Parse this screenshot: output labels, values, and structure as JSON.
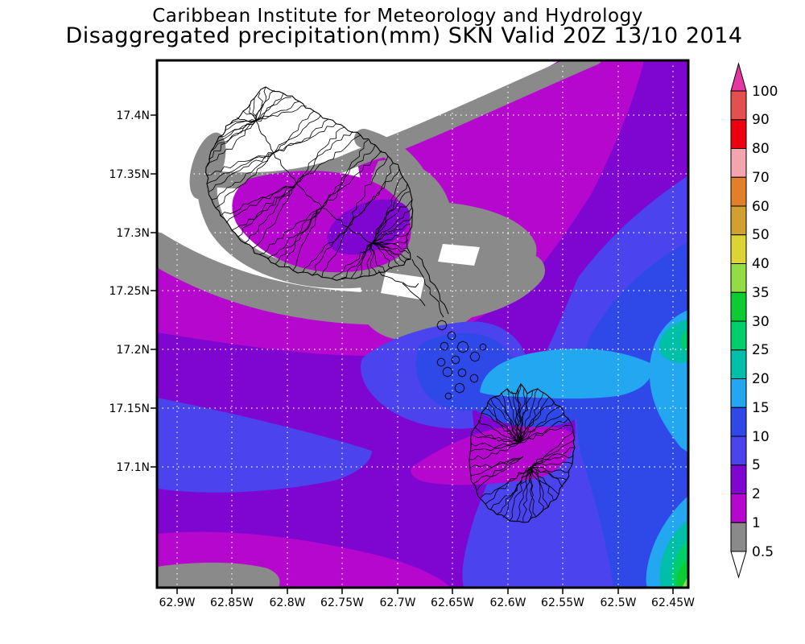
{
  "titles": {
    "line1": "Caribbean Institute for Meteorology and Hydrology",
    "line2": "Disaggregated precipitation(mm) SKN Valid 20Z 13/10 2014"
  },
  "axes": {
    "lat": [
      "17.4N",
      "17.35N",
      "17.3N",
      "17.25N",
      "17.2N",
      "17.15N",
      "17.1N"
    ],
    "lon": [
      "62.9W",
      "62.85W",
      "62.8W",
      "62.75W",
      "62.7W",
      "62.65W",
      "62.6W",
      "62.55W",
      "62.5W",
      "62.45W"
    ]
  },
  "colorbar": {
    "levels": [
      "100",
      "90",
      "80",
      "70",
      "60",
      "50",
      "40",
      "35",
      "30",
      "25",
      "20",
      "15",
      "10",
      "5",
      "2",
      "1",
      "0.5"
    ],
    "segment_colors_top_to_bottom": [
      "#E4504E",
      "#EE0011",
      "#F4A4AC",
      "#E2802A",
      "#D2A02E",
      "#DCD435",
      "#94DC46",
      "#0DCC33",
      "#00CE6B",
      "#00BFA8",
      "#22A7F0",
      "#2F49E8",
      "#4B43EE",
      "#7F05D0",
      "#B607CF",
      "#8A8A8A"
    ],
    "over_color": "#E636A4",
    "under_color": "#FFFFFF"
  },
  "chart_data": {
    "type": "heatmap",
    "title": "Disaggregated precipitation(mm) SKN Valid 20Z 13/10 2014",
    "institution": "Caribbean Institute for Meteorology and Hydrology",
    "units": "mm",
    "region_code": "SKN",
    "valid_time": "20Z 13/10 2014",
    "lon_ticks_deg_west": [
      62.9,
      62.85,
      62.8,
      62.75,
      62.7,
      62.65,
      62.6,
      62.55,
      62.5,
      62.45
    ],
    "lat_ticks_deg_north": [
      17.4,
      17.35,
      17.3,
      17.25,
      17.2,
      17.15,
      17.1
    ],
    "contour_levels_mm": [
      0.5,
      1,
      2,
      5,
      10,
      15,
      20,
      25,
      30,
      35,
      40,
      50,
      60,
      70,
      80,
      90,
      100
    ],
    "level_colors_low_to_high": [
      "#FFFFFF",
      "#8A8A8A",
      "#B607CF",
      "#7F05D0",
      "#4B43EE",
      "#2F49E8",
      "#22A7F0",
      "#00BFA8",
      "#00CE6B",
      "#0DCC33",
      "#94DC46",
      "#DCD435",
      "#D2A02E",
      "#E2802A",
      "#F4A4AC",
      "#EE0011",
      "#E4504E",
      "#E636A4"
    ],
    "grid": true,
    "legend_position": "right"
  }
}
